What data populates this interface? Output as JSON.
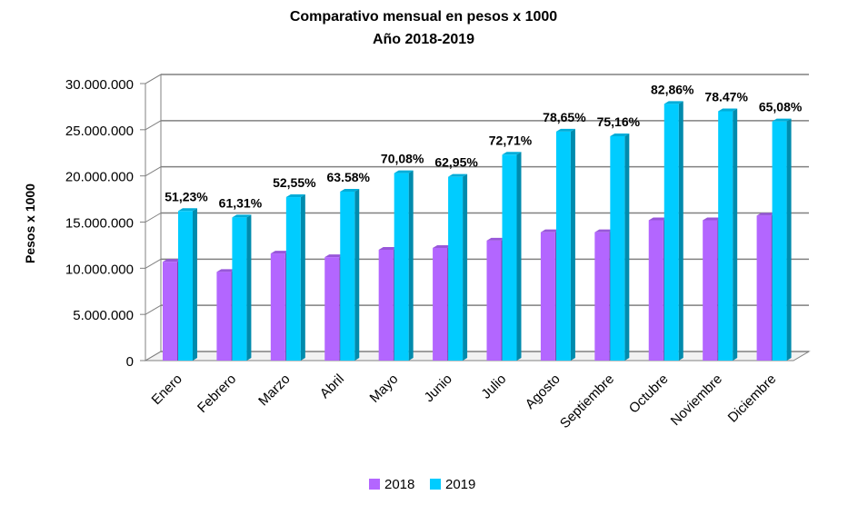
{
  "chart_data": {
    "type": "bar",
    "title": "Comparativo mensual en pesos x 1000",
    "subtitle": "Año 2018-2019",
    "ylabel": "Pesos x 1000",
    "xlabel": "",
    "ylim": [
      0,
      30000000
    ],
    "yticks": [
      "0",
      "5.000.000",
      "10.000.000",
      "15.000.000",
      "20.000.000",
      "25.000.000",
      "30.000.000"
    ],
    "categories": [
      "Enero",
      "Febrero",
      "Marzo",
      "Abril",
      "Mayo",
      "Junio",
      "Julio",
      "Agosto",
      "Septiembre",
      "Octubre",
      "Noviembre",
      "Diciembre"
    ],
    "series": [
      {
        "name": "2018",
        "color": "#b366ff",
        "values": [
          10700000,
          9600000,
          11600000,
          11200000,
          12000000,
          12200000,
          13000000,
          13900000,
          13900000,
          15200000,
          15200000,
          15700000
        ]
      },
      {
        "name": "2019",
        "color": "#00ccff",
        "values": [
          16200000,
          15500000,
          17700000,
          18300000,
          20300000,
          19900000,
          22300000,
          24800000,
          24300000,
          27800000,
          27000000,
          25900000
        ]
      }
    ],
    "data_labels": [
      "51,23%",
      "61,31%",
      "52,55%",
      "63.58%",
      "70,08%",
      "62,95%",
      "72,71%",
      "78,65%",
      "75,16%",
      "82,86%",
      "78.47%",
      "65,08%"
    ],
    "grid": true,
    "legend_position": "bottom",
    "style": "3d-column"
  }
}
